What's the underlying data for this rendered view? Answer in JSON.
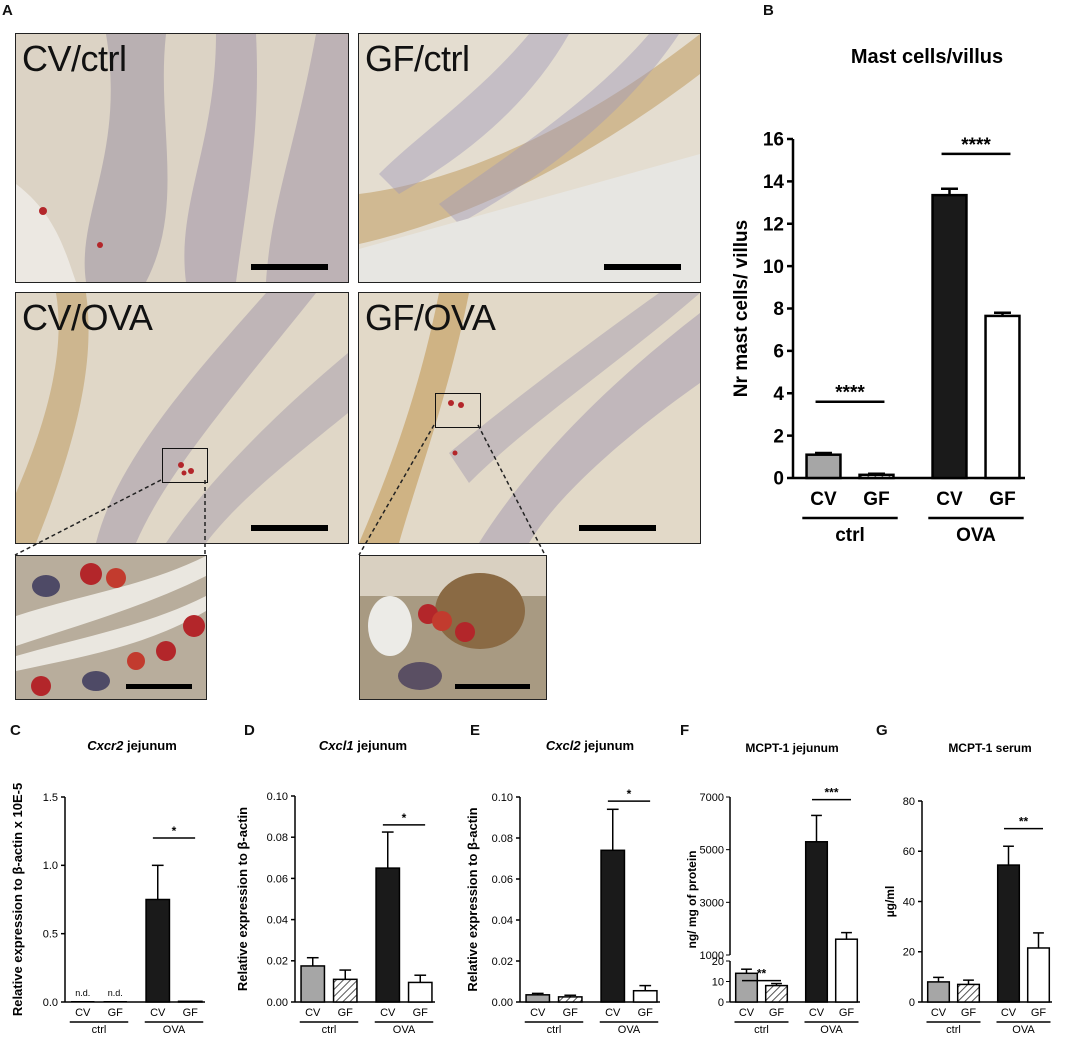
{
  "panels": {
    "A": "A",
    "B": "B",
    "C": "C",
    "D": "D",
    "E": "E",
    "F": "F",
    "G": "G"
  },
  "micrographs": [
    {
      "label": "CV/ctrl"
    },
    {
      "label": "GF/ctrl"
    },
    {
      "label": "CV/OVA"
    },
    {
      "label": "GF/OVA"
    }
  ],
  "colors": {
    "cv_ctrl": "#a6a6a6",
    "gf_ctrl_hatch": "#555555",
    "cv_ova": "#1a1a1a",
    "gf_ova": "#ffffff",
    "tissue_bg": "#d9cfbf",
    "mast_cell": "#b3262a"
  },
  "chart_data": [
    {
      "id": "B",
      "type": "bar",
      "title": "Mast cells/villus",
      "ylabel": "Nr mast cells/ villus",
      "ylim": [
        0,
        16
      ],
      "yticks": [
        "0",
        "2",
        "4",
        "6",
        "8",
        "10",
        "12",
        "14",
        "16"
      ],
      "categories": [
        "CV",
        "GF",
        "CV",
        "GF"
      ],
      "groups": [
        {
          "label": "ctrl",
          "span": [
            0,
            1
          ]
        },
        {
          "label": "OVA",
          "span": [
            2,
            3
          ]
        }
      ],
      "values": [
        1.1,
        0.15,
        13.35,
        7.65
      ],
      "errors": [
        0.08,
        0.05,
        0.3,
        0.15
      ],
      "significance": [
        {
          "between": [
            0,
            1
          ],
          "label": "****",
          "y": 3.6
        },
        {
          "between": [
            2,
            3
          ],
          "label": "****",
          "y": 15.3
        }
      ]
    },
    {
      "id": "C",
      "type": "bar",
      "title_italic": "Cxcr2",
      "title_rest": " jejunum",
      "ylabel": "Relative expression to β-actin x 10E-5",
      "ylim": [
        0,
        1.5
      ],
      "yticks": [
        "0.0",
        "0.5",
        "1.0",
        "1.5"
      ],
      "categories": [
        "CV",
        "GF",
        "CV",
        "GF"
      ],
      "groups": [
        {
          "label": "ctrl",
          "span": [
            0,
            1
          ]
        },
        {
          "label": "OVA",
          "span": [
            2,
            3
          ]
        }
      ],
      "values": [
        0,
        0,
        0.75,
        0.005
      ],
      "errors": [
        0,
        0,
        0.25,
        0
      ],
      "annotations": [
        "n.d.",
        "n.d.",
        "",
        ""
      ],
      "significance": [
        {
          "between": [
            2,
            3
          ],
          "label": "*",
          "y": 1.2
        }
      ]
    },
    {
      "id": "D",
      "type": "bar",
      "title_italic": "Cxcl1",
      "title_rest": " jejunum",
      "ylabel": "Relative expression to β-actin",
      "ylim": [
        0,
        0.1
      ],
      "yticks": [
        "0.00",
        "0.02",
        "0.04",
        "0.06",
        "0.08",
        "0.10"
      ],
      "categories": [
        "CV",
        "GF",
        "CV",
        "GF"
      ],
      "groups": [
        {
          "label": "ctrl",
          "span": [
            0,
            1
          ]
        },
        {
          "label": "OVA",
          "span": [
            2,
            3
          ]
        }
      ],
      "values": [
        0.0175,
        0.011,
        0.065,
        0.0095
      ],
      "errors": [
        0.004,
        0.0045,
        0.0175,
        0.0035
      ],
      "significance": [
        {
          "between": [
            2,
            3
          ],
          "label": "*",
          "y": 0.086
        }
      ]
    },
    {
      "id": "E",
      "type": "bar",
      "title_italic": "Cxcl2",
      "title_rest": " jejunum",
      "ylabel": "Relative expression to β-actin",
      "ylim": [
        0,
        0.1
      ],
      "yticks": [
        "0.00",
        "0.02",
        "0.04",
        "0.06",
        "0.08",
        "0.10"
      ],
      "categories": [
        "CV",
        "GF",
        "CV",
        "GF"
      ],
      "groups": [
        {
          "label": "ctrl",
          "span": [
            0,
            1
          ]
        },
        {
          "label": "OVA",
          "span": [
            2,
            3
          ]
        }
      ],
      "values": [
        0.0035,
        0.0025,
        0.074,
        0.0055
      ],
      "errors": [
        0.0007,
        0.0008,
        0.02,
        0.0025
      ],
      "significance": [
        {
          "between": [
            2,
            3
          ],
          "label": "*",
          "y": 0.098
        }
      ]
    },
    {
      "id": "F",
      "type": "bar",
      "title": "MCPT-1 jejunum",
      "ylabel": "ng/ mg of protein",
      "broken_axis": true,
      "lower_ylim": [
        0,
        20
      ],
      "upper_ylim": [
        1000,
        7000
      ],
      "lower_yticks": [
        "0",
        "10",
        "20"
      ],
      "upper_yticks": [
        "1000",
        "3000",
        "5000",
        "7000"
      ],
      "categories": [
        "CV",
        "GF",
        "CV",
        "GF"
      ],
      "groups": [
        {
          "label": "ctrl",
          "span": [
            0,
            1
          ]
        },
        {
          "label": "OVA",
          "span": [
            2,
            3
          ]
        }
      ],
      "values": [
        14,
        8,
        5300,
        1600
      ],
      "errors": [
        2,
        1,
        1000,
        250
      ],
      "significance": [
        {
          "between": [
            0,
            1
          ],
          "label": "**",
          "y": 26
        },
        {
          "between": [
            2,
            3
          ],
          "label": "***",
          "y": 6900
        }
      ]
    },
    {
      "id": "G",
      "type": "bar",
      "title": "MCPT-1 serum",
      "ylabel": "µg/ml",
      "ylim": [
        0,
        80
      ],
      "yticks": [
        "0",
        "20",
        "40",
        "60",
        "80"
      ],
      "categories": [
        "CV",
        "GF",
        "CV",
        "GF"
      ],
      "groups": [
        {
          "label": "ctrl",
          "span": [
            0,
            1
          ]
        },
        {
          "label": "OVA",
          "span": [
            2,
            3
          ]
        }
      ],
      "values": [
        8,
        7,
        54.5,
        21.5
      ],
      "errors": [
        1.8,
        1.7,
        7.5,
        6
      ],
      "significance": [
        {
          "between": [
            2,
            3
          ],
          "label": "**",
          "y": 69
        }
      ]
    }
  ]
}
